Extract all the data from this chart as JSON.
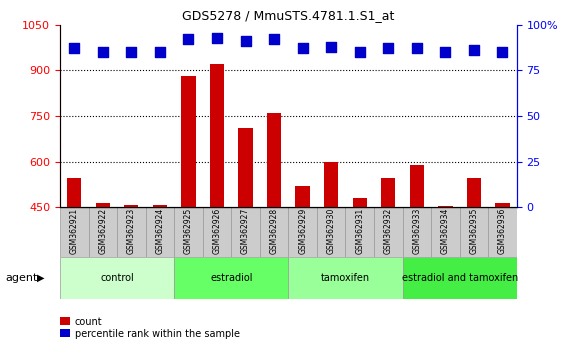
{
  "title": "GDS5278 / MmuSTS.4781.1.S1_at",
  "samples": [
    "GSM362921",
    "GSM362922",
    "GSM362923",
    "GSM362924",
    "GSM362925",
    "GSM362926",
    "GSM362927",
    "GSM362928",
    "GSM362929",
    "GSM362930",
    "GSM362931",
    "GSM362932",
    "GSM362933",
    "GSM362934",
    "GSM362935",
    "GSM362936"
  ],
  "counts": [
    545,
    462,
    458,
    458,
    880,
    920,
    710,
    760,
    520,
    600,
    480,
    545,
    590,
    455,
    545,
    462
  ],
  "percentile_ranks": [
    87,
    85,
    85,
    85,
    92,
    93,
    91,
    92,
    87,
    88,
    85,
    87,
    87,
    85,
    86,
    85
  ],
  "groups": [
    {
      "name": "control",
      "start": 0,
      "end": 3,
      "color": "#ccffcc"
    },
    {
      "name": "estradiol",
      "start": 4,
      "end": 7,
      "color": "#66ff66"
    },
    {
      "name": "tamoxifen",
      "start": 8,
      "end": 11,
      "color": "#99ff99"
    },
    {
      "name": "estradiol and tamoxifen",
      "start": 12,
      "end": 15,
      "color": "#44ee44"
    }
  ],
  "bar_color": "#cc0000",
  "dot_color": "#0000cc",
  "ylim_left": [
    450,
    1050
  ],
  "ylim_right": [
    0,
    100
  ],
  "yticks_left": [
    450,
    600,
    750,
    900,
    1050
  ],
  "yticks_right": [
    0,
    25,
    50,
    75,
    100
  ],
  "ytick_right_labels": [
    "0",
    "25",
    "50",
    "75",
    "100%"
  ],
  "grid_values": [
    600,
    750,
    900
  ],
  "bar_width": 0.5,
  "dot_size": 50,
  "legend_count_label": "count",
  "legend_pct_label": "percentile rank within the sample",
  "tick_area_color": "#cccccc",
  "tick_border_color": "#999999",
  "agent_label": "agent"
}
